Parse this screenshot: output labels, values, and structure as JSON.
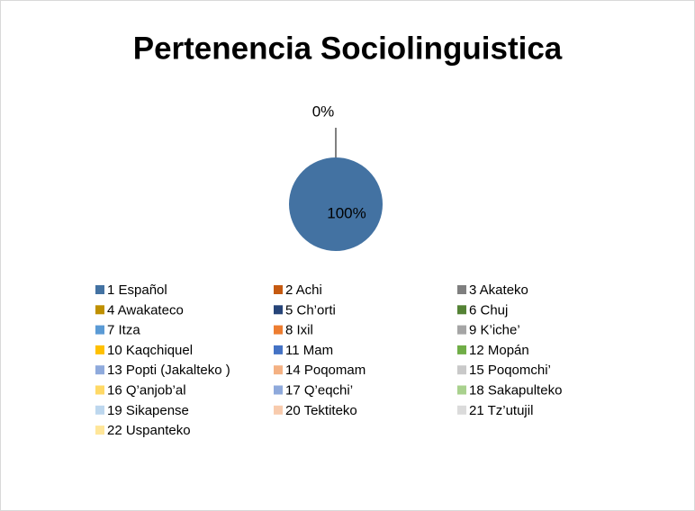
{
  "chart_data": {
    "type": "pie",
    "title": "Pertenencia Sociolinguistica",
    "categories": [
      "1 Español",
      "2 Achi",
      "3 Akateko",
      "4 Awakateco",
      "5 Ch’orti",
      "6 Chuj",
      "7 Itza",
      "8 Ixil",
      "9 K’iche’",
      "10 Kaqchiquel",
      "11 Mam",
      "12 Mopán",
      "13 Popti (Jakalteko )",
      "14 Poqomam",
      "15 Poqomchi’",
      "16 Q’anjob’al",
      "17 Q’eqchi’",
      "18 Sakapulteko",
      "19 Sikapense",
      "20 Tektiteko",
      "21 Tz’utujil",
      "22 Uspanteko"
    ],
    "values": [
      100,
      0,
      0,
      0,
      0,
      0,
      0,
      0,
      0,
      0,
      0,
      0,
      0,
      0,
      0,
      0,
      0,
      0,
      0,
      0,
      0,
      0
    ],
    "value_labels": [
      "100%",
      "0%",
      null,
      null,
      null,
      null,
      null,
      null,
      null,
      null,
      null,
      null,
      null,
      null,
      null,
      null,
      null,
      null,
      null,
      null,
      null,
      null
    ],
    "colors": [
      "#4372a2",
      "#c55a11",
      "#7f7f7f",
      "#bf9000",
      "#264478",
      "#548235",
      "#5b9bd5",
      "#ed7d31",
      "#a5a5a5",
      "#ffc000",
      "#4472c4",
      "#70ad47",
      "#8faadc",
      "#f4b183",
      "#c9c9c9",
      "#ffd966",
      "#8ea9db",
      "#a9d18e",
      "#bdd7ee",
      "#f8cbad",
      "#dbdbdb",
      "#ffe699"
    ],
    "legend": "bottom"
  }
}
